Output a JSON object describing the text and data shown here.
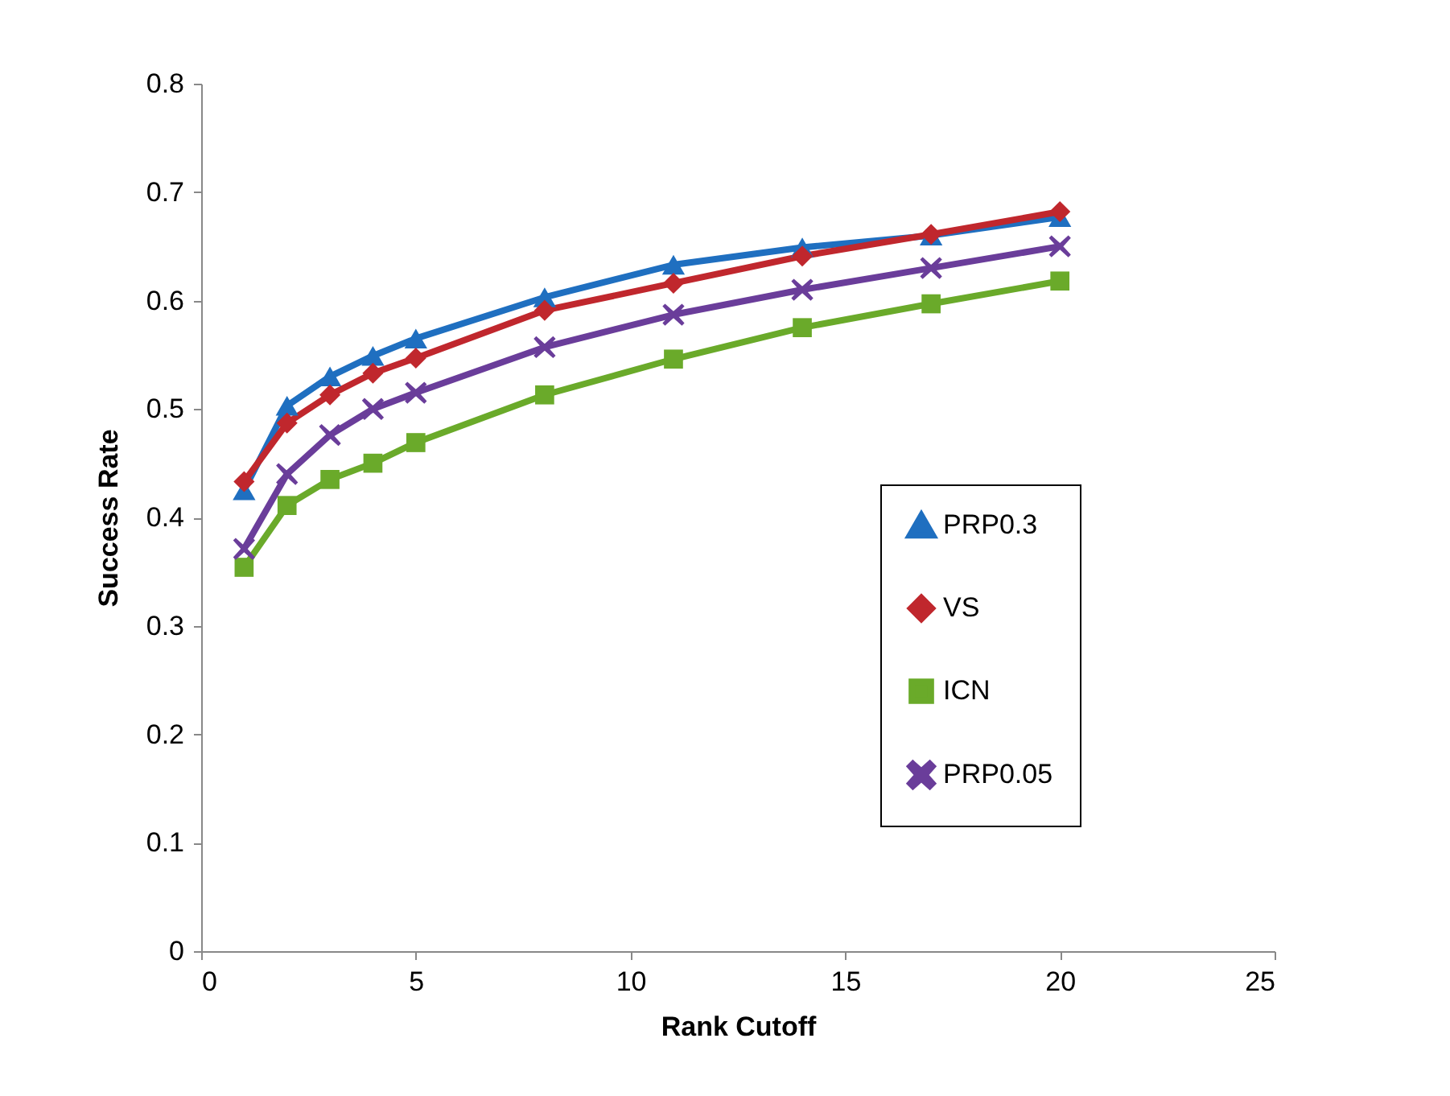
{
  "chart_data": {
    "type": "line",
    "xlabel": "Rank Cutoff",
    "ylabel": "Success Rate",
    "x": [
      1,
      2,
      3,
      4,
      5,
      8,
      11,
      14,
      17,
      20
    ],
    "series": [
      {
        "name": "PRP0.3",
        "color": "#1f6fc0",
        "marker": "triangle",
        "values": [
          0.425,
          0.503,
          0.53,
          0.549,
          0.565,
          0.603,
          0.633,
          0.649,
          0.66,
          0.677
        ]
      },
      {
        "name": "VS",
        "color": "#c0272d",
        "marker": "diamond",
        "values": [
          0.433,
          0.487,
          0.513,
          0.533,
          0.547,
          0.591,
          0.616,
          0.641,
          0.661,
          0.682
        ]
      },
      {
        "name": "ICN",
        "color": "#6aaa2a",
        "marker": "square",
        "values": [
          0.354,
          0.411,
          0.435,
          0.45,
          0.469,
          0.513,
          0.546,
          0.575,
          0.597,
          0.618
        ]
      },
      {
        "name": "PRP0.05",
        "color": "#6a3d9a",
        "marker": "cross",
        "values": [
          0.371,
          0.44,
          0.476,
          0.5,
          0.515,
          0.557,
          0.587,
          0.61,
          0.63,
          0.65
        ]
      }
    ],
    "xlim": [
      0,
      25
    ],
    "xticks": [
      0,
      5,
      10,
      15,
      20,
      25
    ],
    "ylim": [
      0,
      0.8
    ],
    "yticks": [
      0,
      0.1,
      0.2,
      0.3,
      0.4,
      0.5,
      0.6,
      0.7,
      0.8
    ],
    "grid": false,
    "legend": "right",
    "line_style": "solid"
  }
}
